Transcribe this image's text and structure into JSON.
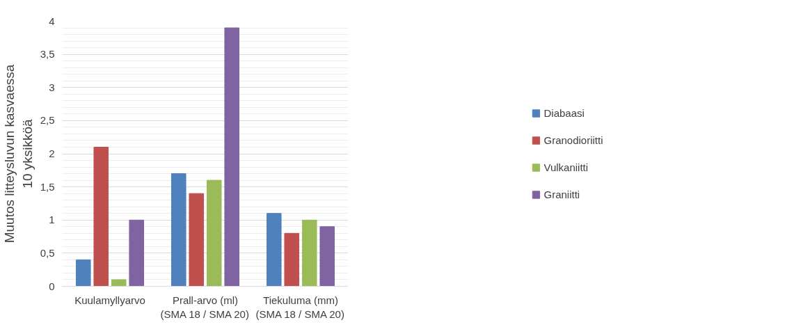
{
  "chart_data": {
    "type": "bar",
    "ylabel": "Muutos litteysluvun kasvaessa\n10 yksikköä",
    "categories": [
      "Kuulamyllyarvo",
      "Prall-arvo (ml)\n(SMA 18 / SMA 20)",
      "Tiekuluma (mm)\n(SMA 18 / SMA 20)"
    ],
    "series": [
      {
        "name": "Diabaasi",
        "color": "#4f81bd",
        "values": [
          0.4,
          1.7,
          1.1
        ]
      },
      {
        "name": "Granodioriitti",
        "color": "#c0504d",
        "values": [
          2.1,
          1.4,
          0.8
        ]
      },
      {
        "name": "Vulkaniitti",
        "color": "#9bbb59",
        "values": [
          0.1,
          1.6,
          1.0
        ]
      },
      {
        "name": "Graniitti",
        "color": "#8064a2",
        "values": [
          1.0,
          3.9,
          0.9
        ]
      }
    ],
    "ylim": [
      0,
      4
    ],
    "yticks": [
      0,
      {
        "value": 0.5,
        "label": "0,5"
      },
      1,
      {
        "value": 1.5,
        "label": "1,5"
      },
      2,
      {
        "value": 2.5,
        "label": "2,5"
      },
      3,
      {
        "value": 3.5,
        "label": "3,5"
      },
      4
    ],
    "grid": "y",
    "legend": "right"
  }
}
